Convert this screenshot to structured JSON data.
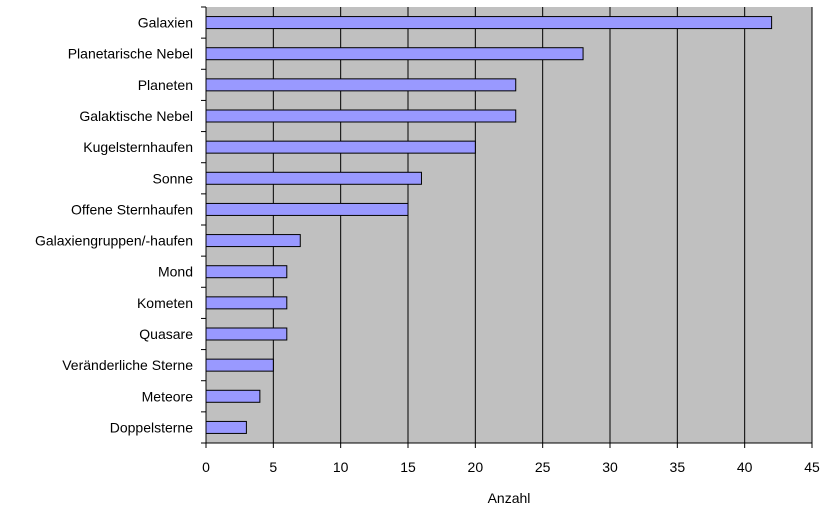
{
  "chart_data": {
    "type": "bar",
    "orientation": "horizontal",
    "categories": [
      "Galaxien",
      "Planetarische Nebel",
      "Planeten",
      "Galaktische Nebel",
      "Kugelsternhaufen",
      "Sonne",
      "Offene Sternhaufen",
      "Galaxiengruppen/-haufen",
      "Mond",
      "Kometen",
      "Quasare",
      "Veränderliche Sterne",
      "Meteore",
      "Doppelsterne"
    ],
    "values": [
      42,
      28,
      23,
      23,
      20,
      16,
      15,
      7,
      6,
      6,
      6,
      5,
      4,
      3
    ],
    "xlabel": "Anzahl",
    "ylabel": "",
    "xlim": [
      0,
      45
    ],
    "xticks": [
      "0",
      "5",
      "10",
      "15",
      "20",
      "25",
      "30",
      "35",
      "40",
      "45"
    ],
    "grid": "vertical",
    "legend": "none",
    "colors": {
      "plot_background": "#c0c0c0",
      "bar_fill": "#9999ff",
      "bar_stroke": "#000000",
      "grid": "#000000"
    }
  }
}
